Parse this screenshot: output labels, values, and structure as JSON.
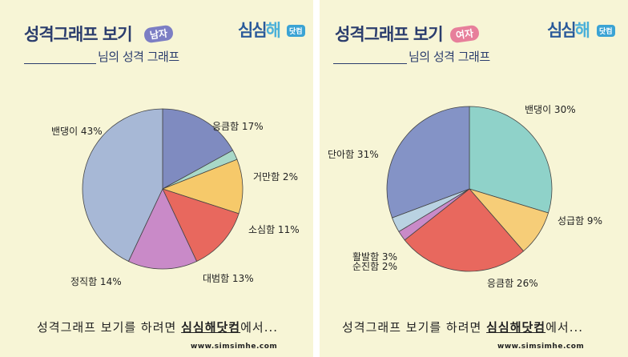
{
  "panels": {
    "male": {
      "title": "성격그래프 보기",
      "gender": "남자",
      "subtitle": "님의 성격 그래프",
      "brand_main": "심심",
      "brand_hae": "해",
      "brand_badge": "닷컴",
      "footer_pre": "성격그래프 보기를 하려면 ",
      "footer_accent": "심심해닷컴",
      "footer_post": "에서...",
      "url": "www.simsimhe.com"
    },
    "female": {
      "title": "성격그래프 보기",
      "gender": "여자",
      "subtitle": "님의 성격 그래프",
      "brand_main": "심심",
      "brand_hae": "해",
      "brand_badge": "닷컴",
      "footer_pre": "성격그래프 보기를 하려면 ",
      "footer_accent": "심심해닷컴",
      "footer_post": "에서...",
      "url": "www.simsimhe.com"
    }
  },
  "chart_data": [
    {
      "type": "pie",
      "slices": [
        {
          "label": "응큼함 17%",
          "value": 17,
          "color": "#7f8bc0"
        },
        {
          "label": "거만함 2%",
          "value": 2,
          "color": "#a8d8c8"
        },
        {
          "label": "소심함 11%",
          "value": 11,
          "color": "#f6c96a"
        },
        {
          "label": "대범함 13%",
          "value": 13,
          "color": "#e8685e"
        },
        {
          "label": "정직함 14%",
          "value": 14,
          "color": "#c98ac8"
        },
        {
          "label": "밴댕이 43%",
          "value": 43,
          "color": "#a7b8d6"
        }
      ]
    },
    {
      "type": "pie",
      "slices": [
        {
          "label": "밴댕이 30%",
          "value": 30,
          "color": "#8fd2c9"
        },
        {
          "label": "성급함 9%",
          "value": 9,
          "color": "#f6cd78"
        },
        {
          "label": "응큼함 26%",
          "value": 26,
          "color": "#e8685e"
        },
        {
          "label": "순진함 2%",
          "value": 2,
          "color": "#c98ac8"
        },
        {
          "label": "활발함 3%",
          "value": 3,
          "color": "#b9d2e2"
        },
        {
          "label": "단아함 31%",
          "value": 31,
          "color": "#8493c6"
        }
      ]
    }
  ]
}
